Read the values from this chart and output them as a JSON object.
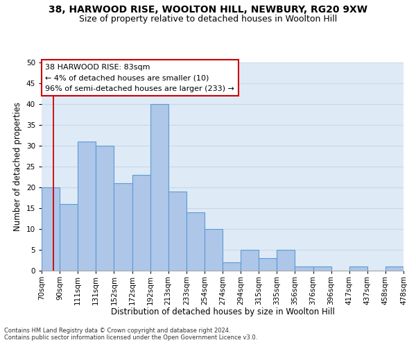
{
  "title_line1": "38, HARWOOD RISE, WOOLTON HILL, NEWBURY, RG20 9XW",
  "title_line2": "Size of property relative to detached houses in Woolton Hill",
  "xlabel": "Distribution of detached houses by size in Woolton Hill",
  "ylabel": "Number of detached properties",
  "footnote1": "Contains HM Land Registry data © Crown copyright and database right 2024.",
  "footnote2": "Contains public sector information licensed under the Open Government Licence v3.0.",
  "annotation_title": "38 HARWOOD RISE: 83sqm",
  "annotation_line2": "← 4% of detached houses are smaller (10)",
  "annotation_line3": "96% of semi-detached houses are larger (233) →",
  "bar_values": [
    20,
    16,
    31,
    30,
    21,
    23,
    40,
    19,
    14,
    10,
    2,
    5,
    3,
    5,
    1,
    1,
    0,
    1,
    0,
    1
  ],
  "categories": [
    "70sqm",
    "90sqm",
    "111sqm",
    "131sqm",
    "152sqm",
    "172sqm",
    "192sqm",
    "213sqm",
    "233sqm",
    "254sqm",
    "274sqm",
    "294sqm",
    "315sqm",
    "335sqm",
    "356sqm",
    "376sqm",
    "396sqm",
    "417sqm",
    "437sqm",
    "458sqm",
    "478sqm"
  ],
  "bar_color": "#aec6e8",
  "bar_edge_color": "#5b9bd5",
  "ylim": [
    0,
    50
  ],
  "yticks": [
    0,
    5,
    10,
    15,
    20,
    25,
    30,
    35,
    40,
    45,
    50
  ],
  "grid_color": "#c8d8e8",
  "bg_color": "#deeaf6",
  "marker_color": "#cc0000",
  "annotation_box_color": "#cc0000",
  "title_fontsize": 10,
  "subtitle_fontsize": 9,
  "axis_label_fontsize": 8.5,
  "tick_fontsize": 7.5,
  "annotation_fontsize": 8,
  "footnote_fontsize": 6
}
